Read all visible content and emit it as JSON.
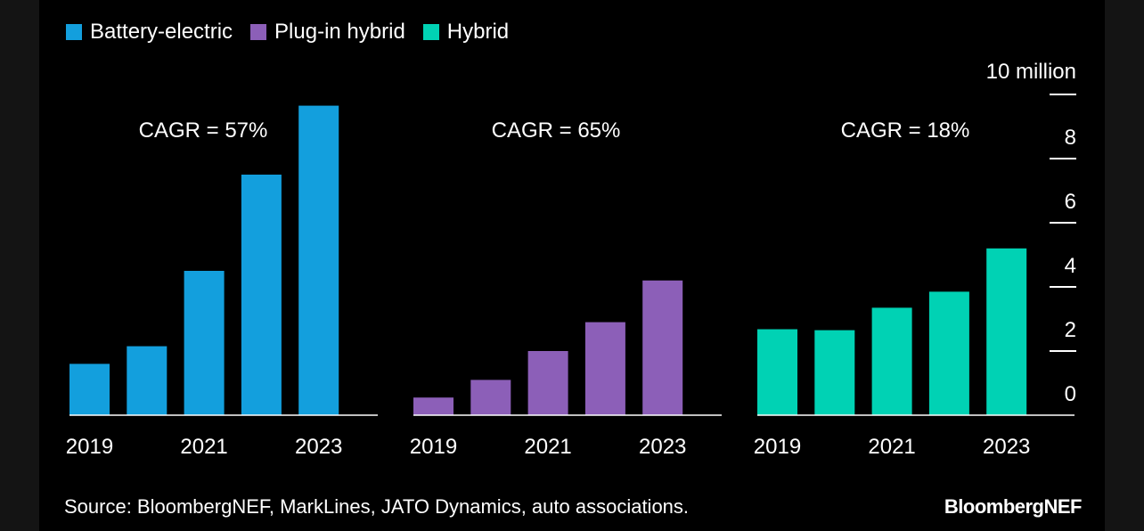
{
  "chart_data": {
    "type": "bar",
    "unit_label": "10 million",
    "y_ticks": [
      "0",
      "2",
      "4",
      "6",
      "8"
    ],
    "ylim": [
      0,
      10
    ],
    "grid": false,
    "legend_position": "top-left",
    "colors": {
      "Battery-electric": "#139fdd",
      "Plug-in hybrid": "#8c5fb8",
      "Hybrid": "#00d2b4",
      "background": "#000000",
      "axis": "#ffffff"
    },
    "series": [
      {
        "name": "Battery-electric",
        "categories": [
          "2019",
          "2020",
          "2021",
          "2022",
          "2023"
        ],
        "x_tick_labels": [
          "2019",
          "2021",
          "2023"
        ],
        "values": [
          1.6,
          2.15,
          4.5,
          7.5,
          9.65
        ],
        "annotation": "CAGR = 57%"
      },
      {
        "name": "Plug-in hybrid",
        "categories": [
          "2019",
          "2020",
          "2021",
          "2022",
          "2023"
        ],
        "x_tick_labels": [
          "2019",
          "2021",
          "2023"
        ],
        "values": [
          0.55,
          1.1,
          2.0,
          2.9,
          4.2
        ],
        "annotation": "CAGR = 65%"
      },
      {
        "name": "Hybrid",
        "categories": [
          "2019",
          "2020",
          "2021",
          "2022",
          "2023"
        ],
        "x_tick_labels": [
          "2019",
          "2021",
          "2023"
        ],
        "values": [
          2.68,
          2.65,
          3.35,
          3.85,
          5.2
        ],
        "annotation": "CAGR = 18%"
      }
    ]
  },
  "source": "Source: BloombergNEF, MarkLines, JATO Dynamics, auto associations.",
  "brand": "BloombergNEF"
}
